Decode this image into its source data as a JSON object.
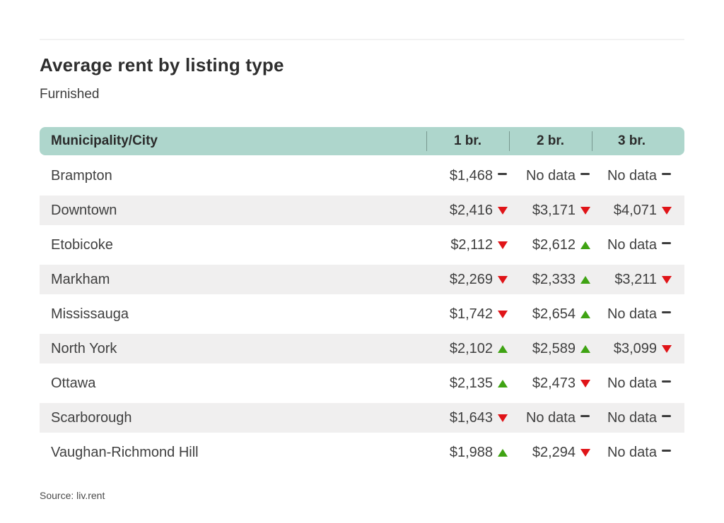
{
  "chart_data": {
    "type": "table",
    "title": "Average rent by listing type",
    "subtitle": "Furnished",
    "source": "Source: liv.rent",
    "columns": [
      "Municipality/City",
      "1 br.",
      "2 br.",
      "3 br."
    ],
    "rows": [
      {
        "name": "Brampton",
        "br1": {
          "value": "$1,468",
          "trend": "flat"
        },
        "br2": {
          "value": "No data",
          "trend": "flat"
        },
        "br3": {
          "value": "No data",
          "trend": "flat"
        }
      },
      {
        "name": "Downtown",
        "br1": {
          "value": "$2,416",
          "trend": "down"
        },
        "br2": {
          "value": "$3,171",
          "trend": "down"
        },
        "br3": {
          "value": "$4,071",
          "trend": "down"
        }
      },
      {
        "name": "Etobicoke",
        "br1": {
          "value": "$2,112",
          "trend": "down"
        },
        "br2": {
          "value": "$2,612",
          "trend": "up"
        },
        "br3": {
          "value": "No data",
          "trend": "flat"
        }
      },
      {
        "name": "Markham",
        "br1": {
          "value": "$2,269",
          "trend": "down"
        },
        "br2": {
          "value": "$2,333",
          "trend": "up"
        },
        "br3": {
          "value": "$3,211",
          "trend": "down"
        }
      },
      {
        "name": "Mississauga",
        "br1": {
          "value": "$1,742",
          "trend": "down"
        },
        "br2": {
          "value": "$2,654",
          "trend": "up"
        },
        "br3": {
          "value": "No data",
          "trend": "flat"
        }
      },
      {
        "name": "North York",
        "br1": {
          "value": "$2,102",
          "trend": "up"
        },
        "br2": {
          "value": "$2,589",
          "trend": "up"
        },
        "br3": {
          "value": "$3,099",
          "trend": "down"
        }
      },
      {
        "name": "Ottawa",
        "br1": {
          "value": "$2,135",
          "trend": "up"
        },
        "br2": {
          "value": "$2,473",
          "trend": "down"
        },
        "br3": {
          "value": "No data",
          "trend": "flat"
        }
      },
      {
        "name": "Scarborough",
        "br1": {
          "value": "$1,643",
          "trend": "down"
        },
        "br2": {
          "value": "No data",
          "trend": "flat"
        },
        "br3": {
          "value": "No data",
          "trend": "flat"
        }
      },
      {
        "name": "Vaughan-Richmond Hill",
        "br1": {
          "value": "$1,988",
          "trend": "up"
        },
        "br2": {
          "value": "$2,294",
          "trend": "down"
        },
        "br3": {
          "value": "No data",
          "trend": "flat"
        }
      }
    ],
    "legend_position": "none",
    "grid": "row-stripes"
  },
  "colors": {
    "header_bg": "#aed6cc",
    "row_alt_bg": "#f0efef",
    "trend_up": "#3fa313",
    "trend_down": "#e01418",
    "trend_flat": "#3b3b3b",
    "text": "#3f3f3f"
  }
}
